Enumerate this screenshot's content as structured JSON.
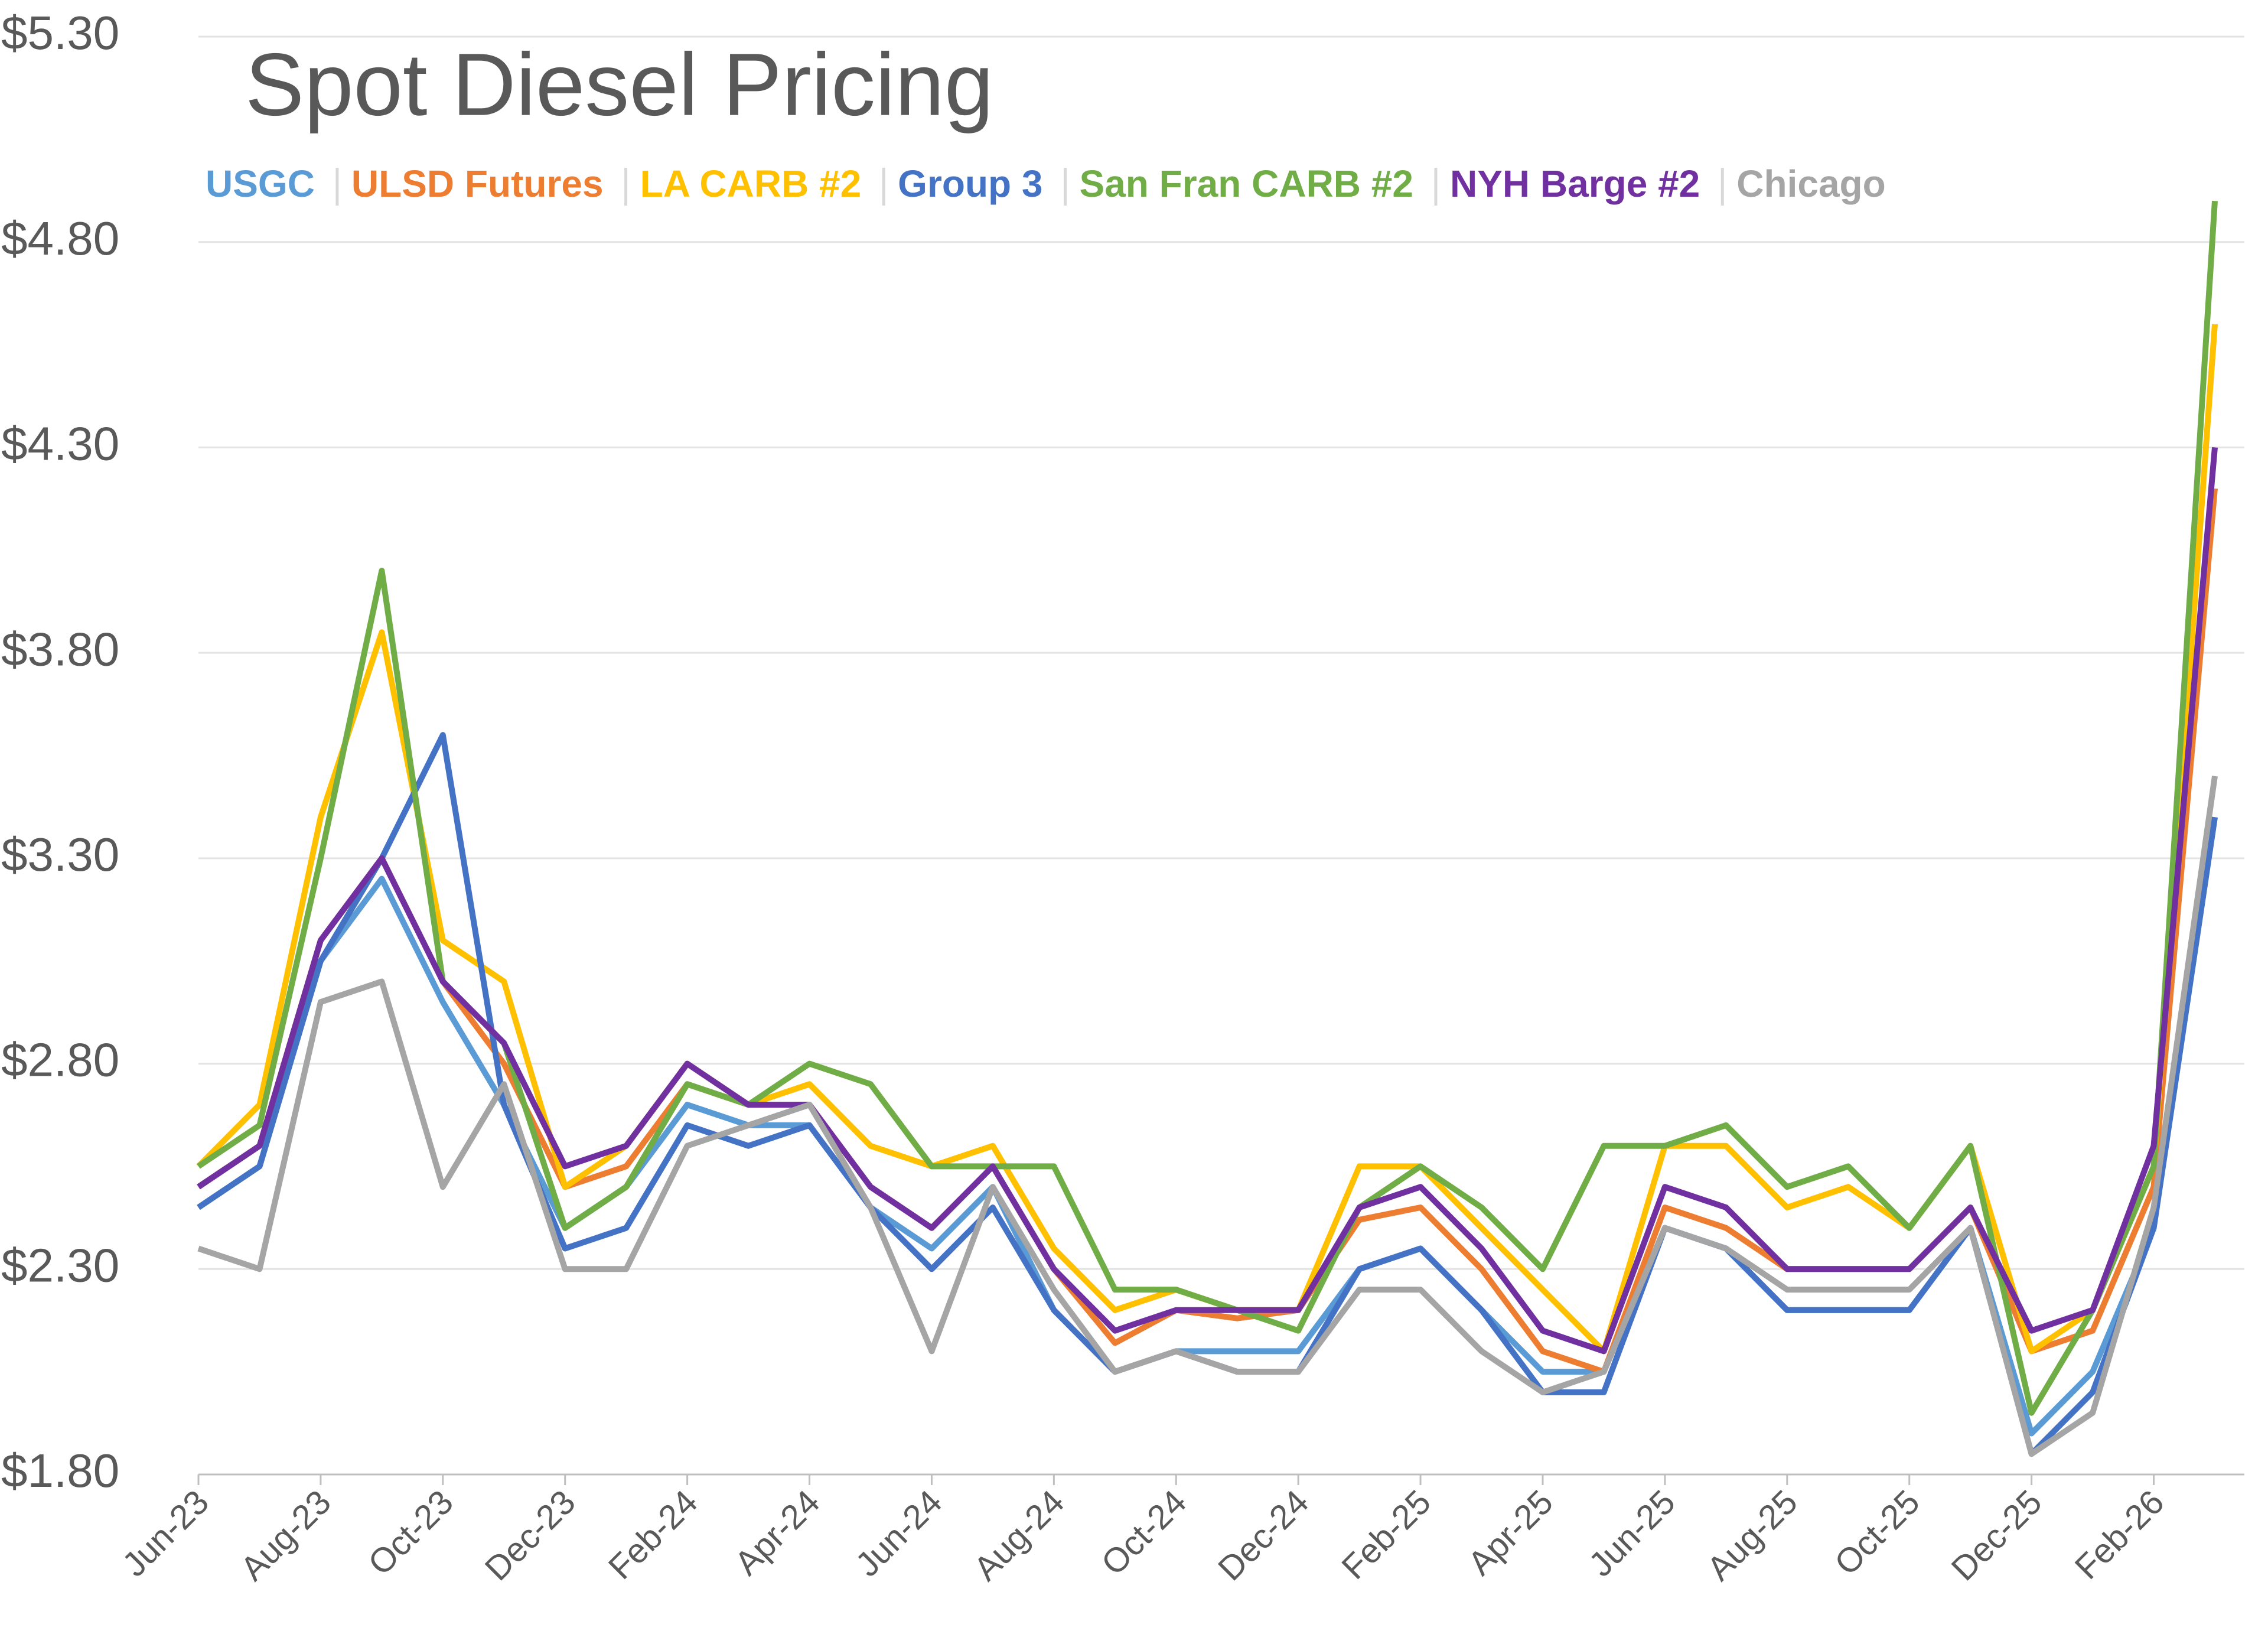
{
  "chart_data": {
    "type": "line",
    "title": "Spot Diesel Pricing",
    "categories": [
      "Jun-23",
      null,
      "Aug-23",
      null,
      "Oct-23",
      null,
      "Dec-23",
      null,
      "Feb-24",
      null,
      "Apr-24",
      null,
      "Jun-24",
      null,
      "Aug-24",
      null,
      "Oct-24",
      null,
      "Dec-24",
      null,
      "Feb-25",
      null,
      "Apr-25",
      null,
      "Jun-25",
      null,
      "Aug-25",
      null,
      "Oct-25",
      null,
      "Dec-25",
      null,
      "Feb-26",
      null
    ],
    "ylim": [
      1.8,
      5.3
    ],
    "yticks": [
      {
        "value": 1.8,
        "label": "$1.80"
      },
      {
        "value": 2.3,
        "label": "$2.30"
      },
      {
        "value": 2.8,
        "label": "$2.80"
      },
      {
        "value": 3.3,
        "label": "$3.30"
      },
      {
        "value": 3.8,
        "label": "$3.80"
      },
      {
        "value": 4.3,
        "label": "$4.30"
      },
      {
        "value": 4.8,
        "label": "$4.80"
      },
      {
        "value": 5.3,
        "label": "$5.30"
      }
    ],
    "grid": true,
    "series": [
      {
        "name": "USGC",
        "color": "#5b9bd5",
        "values": [
          2.45,
          2.55,
          3.05,
          3.25,
          2.95,
          2.7,
          2.4,
          2.5,
          2.7,
          2.65,
          2.65,
          2.45,
          2.35,
          2.5,
          2.2,
          2.05,
          2.1,
          2.1,
          2.1,
          2.3,
          2.35,
          2.2,
          2.05,
          2.05,
          2.4,
          2.35,
          2.2,
          2.2,
          2.2,
          2.4,
          1.9,
          2.05,
          2.4,
          3.4
        ]
      },
      {
        "name": "ULSD Futures",
        "color": "#ed7d31",
        "values": [
          2.5,
          2.6,
          3.1,
          3.3,
          3.0,
          2.8,
          2.5,
          2.55,
          2.75,
          2.7,
          2.7,
          2.5,
          2.4,
          2.55,
          2.3,
          2.12,
          2.2,
          2.18,
          2.2,
          2.42,
          2.45,
          2.3,
          2.1,
          2.05,
          2.45,
          2.4,
          2.3,
          2.3,
          2.3,
          2.45,
          2.1,
          2.15,
          2.5,
          4.2
        ]
      },
      {
        "name": "LA CARB #2",
        "color": "#ffc000",
        "values": [
          2.55,
          2.7,
          3.4,
          3.85,
          3.1,
          3.0,
          2.5,
          2.6,
          2.8,
          2.7,
          2.75,
          2.6,
          2.55,
          2.6,
          2.35,
          2.2,
          2.25,
          2.2,
          2.2,
          2.55,
          2.55,
          2.4,
          2.25,
          2.1,
          2.6,
          2.6,
          2.45,
          2.5,
          2.4,
          2.6,
          2.1,
          2.2,
          2.55,
          4.6
        ]
      },
      {
        "name": "Group 3",
        "color": "#4472c4",
        "values": [
          2.45,
          2.55,
          3.05,
          3.3,
          3.6,
          2.7,
          2.35,
          2.4,
          2.65,
          2.6,
          2.65,
          2.45,
          2.3,
          2.45,
          2.2,
          2.05,
          2.1,
          2.05,
          2.05,
          2.3,
          2.35,
          2.2,
          2.0,
          2.0,
          2.4,
          2.35,
          2.2,
          2.2,
          2.2,
          2.4,
          1.85,
          2.0,
          2.4,
          3.4
        ]
      },
      {
        "name": "San Fran CARB #2",
        "color": "#70ad47",
        "values": [
          2.55,
          2.65,
          3.3,
          4.0,
          3.0,
          2.85,
          2.4,
          2.5,
          2.75,
          2.7,
          2.8,
          2.75,
          2.55,
          2.55,
          2.55,
          2.25,
          2.25,
          2.2,
          2.15,
          2.45,
          2.55,
          2.45,
          2.3,
          2.6,
          2.6,
          2.65,
          2.5,
          2.55,
          2.4,
          2.6,
          1.95,
          2.2,
          2.55,
          4.9
        ]
      },
      {
        "name": "NYH Barge #2",
        "color": "#7030a0",
        "values": [
          2.5,
          2.6,
          3.1,
          3.3,
          3.0,
          2.85,
          2.55,
          2.6,
          2.8,
          2.7,
          2.7,
          2.5,
          2.4,
          2.55,
          2.3,
          2.15,
          2.2,
          2.2,
          2.2,
          2.45,
          2.5,
          2.35,
          2.15,
          2.1,
          2.5,
          2.45,
          2.3,
          2.3,
          2.3,
          2.45,
          2.15,
          2.2,
          2.6,
          4.3
        ]
      },
      {
        "name": "Chicago",
        "color": "#a5a5a5",
        "values": [
          2.35,
          2.3,
          2.95,
          3.0,
          2.5,
          2.75,
          2.3,
          2.3,
          2.6,
          2.65,
          2.7,
          2.45,
          2.1,
          2.5,
          2.25,
          2.05,
          2.1,
          2.05,
          2.05,
          2.25,
          2.25,
          2.1,
          2.0,
          2.05,
          2.4,
          2.35,
          2.25,
          2.25,
          2.25,
          2.4,
          1.85,
          1.95,
          2.45,
          3.5
        ]
      }
    ]
  }
}
